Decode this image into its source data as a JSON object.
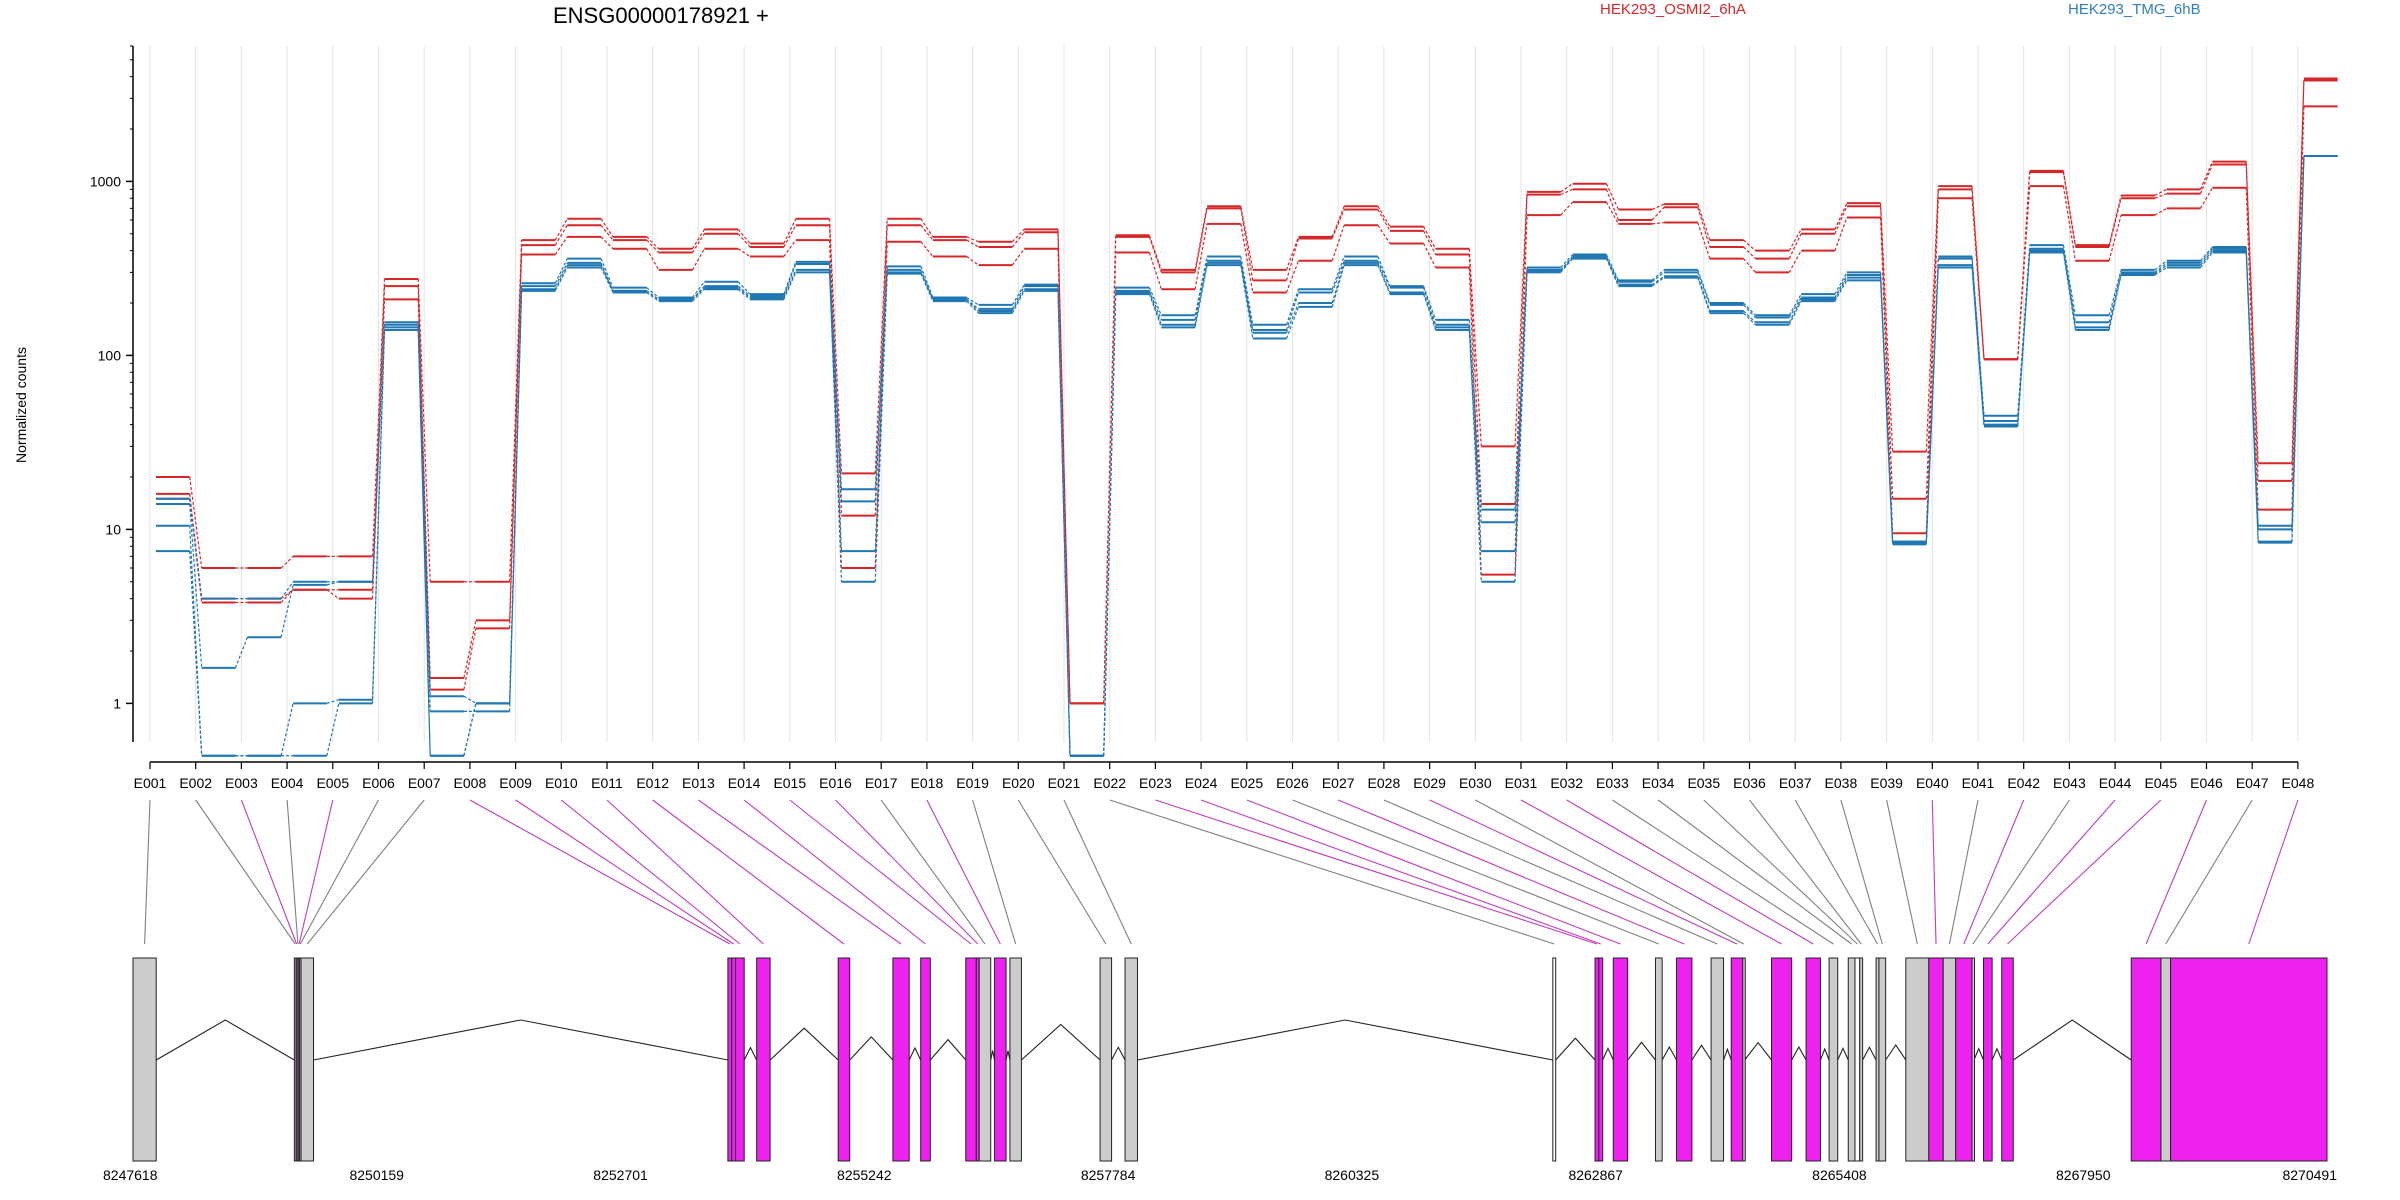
{
  "chart_data": {
    "type": "line",
    "title": "ENSG00000178921 +",
    "ylabel": "Normalized counts",
    "yscale": "log",
    "ylim": [
      0.6,
      6000
    ],
    "yticks": [
      {
        "label": "1",
        "value": 1
      },
      {
        "label": "10",
        "value": 10
      },
      {
        "label": "100",
        "value": 100
      },
      {
        "label": "1000",
        "value": 1000
      }
    ],
    "grid": "vertical",
    "legend": {
      "placement": "top"
    },
    "groups": [
      {
        "name": "HEK293_OSMI2_6hA",
        "color": "#d62728"
      },
      {
        "name": "HEK293_TMG_6hB",
        "color": "#1f77b4"
      }
    ],
    "exons": [
      "E001",
      "E002",
      "E003",
      "E004",
      "E005",
      "E006",
      "E007",
      "E008",
      "E009",
      "E010",
      "E011",
      "E012",
      "E013",
      "E014",
      "E015",
      "E016",
      "E017",
      "E018",
      "E019",
      "E020",
      "E021",
      "E022",
      "E023",
      "E024",
      "E025",
      "E026",
      "E027",
      "E028",
      "E029",
      "E030",
      "E031",
      "E032",
      "E033",
      "E034",
      "E035",
      "E036",
      "E037",
      "E038",
      "E039",
      "E040",
      "E041",
      "E042",
      "E043",
      "E044",
      "E045",
      "E046",
      "E047",
      "E048"
    ],
    "series": [
      {
        "group": 0,
        "values": [
          20,
          6,
          6,
          7,
          7,
          275,
          5,
          5,
          460,
          610,
          480,
          410,
          530,
          440,
          610,
          21,
          610,
          480,
          450,
          530,
          1,
          490,
          310,
          720,
          310,
          480,
          720,
          550,
          410,
          30,
          870,
          970,
          690,
          740,
          460,
          400,
          530,
          750,
          28,
          940,
          95,
          1150,
          430,
          830,
          900,
          1300,
          24,
          3900
        ]
      },
      {
        "group": 0,
        "values": [
          16,
          4,
          4,
          4.5,
          4.5,
          250,
          1.4,
          3,
          430,
          560,
          460,
          390,
          500,
          420,
          560,
          12,
          560,
          460,
          420,
          510,
          1,
          480,
          300,
          700,
          270,
          470,
          690,
          520,
          380,
          14,
          840,
          900,
          600,
          710,
          420,
          360,
          500,
          720,
          15,
          900,
          95,
          1130,
          420,
          800,
          850,
          1250,
          19,
          3800
        ]
      },
      {
        "group": 0,
        "values": [
          15,
          3.8,
          3.8,
          4.5,
          4,
          210,
          1.2,
          2.7,
          380,
          480,
          410,
          310,
          410,
          370,
          460,
          6,
          450,
          370,
          330,
          410,
          1,
          390,
          240,
          570,
          230,
          350,
          560,
          440,
          320,
          5.5,
          640,
          760,
          570,
          580,
          360,
          300,
          400,
          620,
          9.5,
          800,
          95,
          940,
          350,
          640,
          700,
          920,
          13,
          2700
        ]
      },
      {
        "group": 1,
        "values": [
          15,
          4,
          4,
          5,
          5,
          155,
          1.1,
          1,
          260,
          360,
          245,
          215,
          265,
          225,
          345,
          17,
          325,
          215,
          195,
          255,
          0.5,
          245,
          170,
          370,
          150,
          240,
          370,
          250,
          160,
          13,
          320,
          380,
          270,
          310,
          200,
          170,
          225,
          300,
          8.5,
          370,
          45,
          430,
          170,
          310,
          350,
          420,
          10,
          1400
        ]
      },
      {
        "group": 1,
        "values": [
          14,
          1.6,
          2.4,
          4.8,
          5,
          150,
          0.9,
          0.9,
          250,
          340,
          235,
          210,
          250,
          220,
          335,
          14.5,
          310,
          210,
          185,
          250,
          0.5,
          235,
          160,
          350,
          140,
          230,
          350,
          245,
          150,
          11,
          310,
          370,
          265,
          300,
          195,
          165,
          215,
          290,
          8.5,
          360,
          42,
          410,
          155,
          300,
          340,
          410,
          10.5,
          1400
        ]
      },
      {
        "group": 1,
        "values": [
          10.5,
          0.5,
          0.5,
          1,
          1.05,
          140,
          0.5,
          1,
          235,
          320,
          230,
          205,
          240,
          210,
          300,
          7.5,
          295,
          205,
          175,
          235,
          0.5,
          225,
          145,
          330,
          125,
          190,
          330,
          225,
          140,
          7.5,
          300,
          360,
          250,
          280,
          175,
          150,
          205,
          270,
          8.2,
          320,
          39,
          390,
          140,
          290,
          320,
          390,
          8.5,
          1400
        ]
      },
      {
        "group": 1,
        "values": [
          7.5,
          0.5,
          0.5,
          0.5,
          1,
          145,
          0.5,
          1,
          240,
          330,
          235,
          210,
          245,
          215,
          310,
          5,
          300,
          210,
          180,
          240,
          0.5,
          230,
          150,
          340,
          135,
          200,
          340,
          230,
          145,
          5,
          305,
          365,
          255,
          285,
          180,
          155,
          210,
          280,
          8.3,
          330,
          40,
          400,
          145,
          295,
          330,
          400,
          8.4,
          1400
        ]
      }
    ]
  },
  "gene_model": {
    "coordinates": [
      "8247618",
      "8250159",
      "8252701",
      "8255242",
      "8257784",
      "8260325",
      "8262867",
      "8265408",
      "8267950",
      "8270491"
    ],
    "segments": [
      {
        "exon": "E001",
        "start": 8247618,
        "end": 8247860,
        "fill": "#cccccc",
        "highlight": false
      },
      {
        "exon": "E002",
        "start": 8249300,
        "end": 8249317,
        "fill": "#cccccc",
        "highlight": false
      },
      {
        "exon": "E003",
        "start": 8249317,
        "end": 8249330,
        "fill": "#ee22ee",
        "highlight": true
      },
      {
        "exon": "E004",
        "start": 8249330,
        "end": 8249345,
        "fill": "#cccccc",
        "highlight": false
      },
      {
        "exon": "E005",
        "start": 8249345,
        "end": 8249355,
        "fill": "#ee22ee",
        "highlight": true
      },
      {
        "exon": "E006",
        "start": 8249355,
        "end": 8249370,
        "fill": "#cccccc",
        "highlight": false
      },
      {
        "exon": "E007",
        "start": 8249370,
        "end": 8249500,
        "fill": "#cccccc",
        "highlight": false
      },
      {
        "exon": "E008",
        "start": 8253820,
        "end": 8253860,
        "fill": "#ee22ee",
        "highlight": true
      },
      {
        "exon": "E009",
        "start": 8253860,
        "end": 8253900,
        "fill": "#ee22ee",
        "highlight": true
      },
      {
        "exon": "E010",
        "start": 8253900,
        "end": 8253990,
        "fill": "#ee22ee",
        "highlight": true
      },
      {
        "exon": "E011",
        "start": 8254120,
        "end": 8254260,
        "fill": "#ee22ee",
        "highlight": true
      },
      {
        "exon": "E012",
        "start": 8254970,
        "end": 8255090,
        "fill": "#ee22ee",
        "highlight": true
      },
      {
        "exon": "E013",
        "start": 8255540,
        "end": 8255710,
        "fill": "#ee22ee",
        "highlight": true
      },
      {
        "exon": "E014",
        "start": 8255830,
        "end": 8255930,
        "fill": "#ee22ee",
        "highlight": true
      },
      {
        "exon": "E015",
        "start": 8256300,
        "end": 8256410,
        "fill": "#ee22ee",
        "highlight": true
      },
      {
        "exon": "E016",
        "start": 8256410,
        "end": 8256440,
        "fill": "#ee22ee",
        "highlight": true
      },
      {
        "exon": "E017",
        "start": 8256440,
        "end": 8256560,
        "fill": "#cccccc",
        "highlight": false
      },
      {
        "exon": "E018",
        "start": 8256600,
        "end": 8256720,
        "fill": "#ee22ee",
        "highlight": true
      },
      {
        "exon": "E019",
        "start": 8256760,
        "end": 8256880,
        "fill": "#cccccc",
        "highlight": false
      },
      {
        "exon": "E020",
        "start": 8257700,
        "end": 8257820,
        "fill": "#cccccc",
        "highlight": false
      },
      {
        "exon": "E021",
        "start": 8257960,
        "end": 8258090,
        "fill": "#cccccc",
        "highlight": false
      },
      {
        "exon": "E022",
        "start": 8262420,
        "end": 8262450,
        "fill": "#ffffff",
        "highlight": false
      },
      {
        "exon": "E023",
        "start": 8262860,
        "end": 8262900,
        "fill": "#ee22ee",
        "highlight": true
      },
      {
        "exon": "E024",
        "start": 8262900,
        "end": 8262940,
        "fill": "#ee22ee",
        "highlight": true
      },
      {
        "exon": "E025",
        "start": 8263050,
        "end": 8263200,
        "fill": "#ee22ee",
        "highlight": true
      },
      {
        "exon": "E026",
        "start": 8263490,
        "end": 8263560,
        "fill": "#cccccc",
        "highlight": false
      },
      {
        "exon": "E027",
        "start": 8263710,
        "end": 8263870,
        "fill": "#ee22ee",
        "highlight": true
      },
      {
        "exon": "E028",
        "start": 8264070,
        "end": 8264200,
        "fill": "#cccccc",
        "highlight": false
      },
      {
        "exon": "E029",
        "start": 8264280,
        "end": 8264400,
        "fill": "#ee22ee",
        "highlight": true
      },
      {
        "exon": "E030",
        "start": 8264400,
        "end": 8264420,
        "fill": "#cccccc",
        "highlight": false
      },
      {
        "exon": "E031",
        "start": 8264700,
        "end": 8264910,
        "fill": "#ee22ee",
        "highlight": true
      },
      {
        "exon": "E032",
        "start": 8265060,
        "end": 8265210,
        "fill": "#ee22ee",
        "highlight": true
      },
      {
        "exon": "E033",
        "start": 8265300,
        "end": 8265390,
        "fill": "#cccccc",
        "highlight": false
      },
      {
        "exon": "E034",
        "start": 8265500,
        "end": 8265570,
        "fill": "#cccccc",
        "highlight": false
      },
      {
        "exon": "E035",
        "start": 8265570,
        "end": 8265620,
        "fill": "#ffffff",
        "highlight": false
      },
      {
        "exon": "E036",
        "start": 8265620,
        "end": 8265650,
        "fill": "#cccccc",
        "highlight": false
      },
      {
        "exon": "E037",
        "start": 8265790,
        "end": 8265820,
        "fill": "#cccccc",
        "highlight": false
      },
      {
        "exon": "E038",
        "start": 8265820,
        "end": 8265890,
        "fill": "#cccccc",
        "highlight": false
      },
      {
        "exon": "E039",
        "start": 8266100,
        "end": 8266340,
        "fill": "#cccccc",
        "highlight": false
      },
      {
        "exon": "E040",
        "start": 8266340,
        "end": 8266490,
        "fill": "#ee22ee",
        "highlight": true
      },
      {
        "exon": "E041",
        "start": 8266490,
        "end": 8266620,
        "fill": "#cccccc",
        "highlight": false
      },
      {
        "exon": "E042",
        "start": 8266620,
        "end": 8266790,
        "fill": "#ee22ee",
        "highlight": true
      },
      {
        "exon": "E043",
        "start": 8266790,
        "end": 8266810,
        "fill": "#cccccc",
        "highlight": false
      },
      {
        "exon": "E044",
        "start": 8266910,
        "end": 8267000,
        "fill": "#ee22ee",
        "highlight": true
      },
      {
        "exon": "E045",
        "start": 8267100,
        "end": 8267220,
        "fill": "#ee22ee",
        "highlight": true
      },
      {
        "exon": "E046",
        "start": 8268450,
        "end": 8268760,
        "fill": "#ee22ee",
        "highlight": true
      },
      {
        "exon": "E047",
        "start": 8268760,
        "end": 8268860,
        "fill": "#cccccc",
        "highlight": false
      },
      {
        "exon": "E048",
        "start": 8268860,
        "end": 8270491,
        "fill": "#ee22ee",
        "highlight": true
      }
    ]
  }
}
